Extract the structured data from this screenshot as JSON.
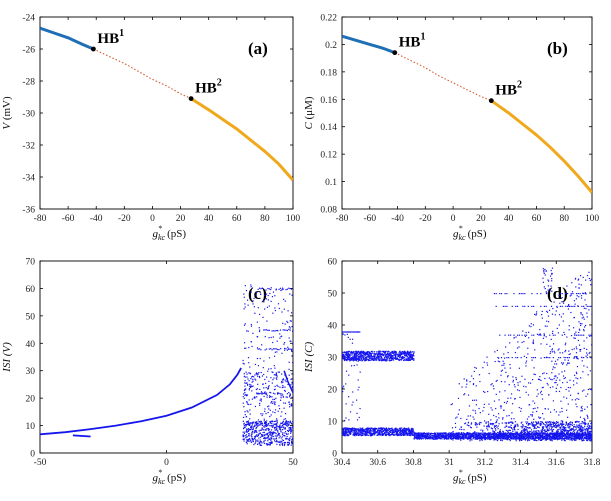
{
  "colors": {
    "stable_low": "#1f6fb5",
    "stable_high": "#f0a81c",
    "unstable": "#d9572a",
    "hb_point": "#000000",
    "isi": "#1515ee"
  },
  "chart_data": [
    {
      "id": "a",
      "type": "line",
      "panel_label": "(a)",
      "xlabel_base": "g",
      "xlabel_sub": "kc",
      "xlabel_sup": "*",
      "xlabel_unit": "(pS)",
      "ylabel_var": "V",
      "ylabel_unit": "(mV)",
      "xlim": [
        -80,
        100
      ],
      "ylim": [
        -36,
        -24
      ],
      "xticks": [
        "-80",
        "-60",
        "-40",
        "-20",
        "0",
        "20",
        "40",
        "60",
        "80",
        "100"
      ],
      "yticks": [
        "-24",
        "-26",
        "-28",
        "-30",
        "-32",
        "-34",
        "-36"
      ],
      "series": [
        {
          "name": "stable-lower",
          "style": "stable_low",
          "x": [
            -80,
            -70,
            -60,
            -50,
            -42
          ],
          "y": [
            -24.7,
            -25.0,
            -25.3,
            -25.7,
            -26.0
          ]
        },
        {
          "name": "unstable",
          "style": "unstable",
          "x": [
            -42,
            -30,
            -20,
            -10,
            0,
            10,
            20,
            27.5
          ],
          "y": [
            -26.0,
            -26.5,
            -26.9,
            -27.4,
            -27.9,
            -28.3,
            -28.8,
            -29.1
          ]
        },
        {
          "name": "stable-upper",
          "style": "stable_high",
          "x": [
            27.5,
            40,
            50,
            60,
            70,
            80,
            90,
            100
          ],
          "y": [
            -29.1,
            -29.8,
            -30.4,
            -31.0,
            -31.7,
            -32.4,
            -33.2,
            -34.2
          ]
        }
      ],
      "hb_points": [
        {
          "label": "HB",
          "sup": "1",
          "x": -42,
          "y": -26.0
        },
        {
          "label": "HB",
          "sup": "2",
          "x": 27.5,
          "y": -29.1
        }
      ]
    },
    {
      "id": "b",
      "type": "line",
      "panel_label": "(b)",
      "xlabel_base": "g",
      "xlabel_sub": "kc",
      "xlabel_sup": "*",
      "xlabel_unit": "(pS)",
      "ylabel_var": "C",
      "ylabel_unit": "(μM)",
      "xlim": [
        -80,
        100
      ],
      "ylim": [
        0.08,
        0.22
      ],
      "xticks": [
        "-80",
        "-60",
        "-40",
        "-20",
        "0",
        "20",
        "40",
        "60",
        "80",
        "100"
      ],
      "yticks": [
        "0.22",
        "0.2",
        "0.18",
        "0.16",
        "0.14",
        "0.12",
        "0.1",
        "0.08"
      ],
      "series": [
        {
          "name": "stable-lower",
          "style": "stable_low",
          "x": [
            -80,
            -70,
            -60,
            -50,
            -42
          ],
          "y": [
            0.206,
            0.203,
            0.2,
            0.197,
            0.194
          ]
        },
        {
          "name": "unstable",
          "style": "unstable",
          "x": [
            -42,
            -30,
            -20,
            -10,
            0,
            10,
            20,
            27.5
          ],
          "y": [
            0.194,
            0.188,
            0.183,
            0.177,
            0.172,
            0.167,
            0.162,
            0.159
          ]
        },
        {
          "name": "stable-upper",
          "style": "stable_high",
          "x": [
            27.5,
            40,
            50,
            60,
            70,
            80,
            90,
            100
          ],
          "y": [
            0.159,
            0.15,
            0.142,
            0.134,
            0.125,
            0.115,
            0.104,
            0.092
          ]
        }
      ],
      "hb_points": [
        {
          "label": "HB",
          "sup": "1",
          "x": -42,
          "y": 0.194
        },
        {
          "label": "HB",
          "sup": "2",
          "x": 27.5,
          "y": 0.159
        }
      ]
    },
    {
      "id": "c",
      "type": "scatter",
      "panel_label": "(c)",
      "xlabel_base": "g",
      "xlabel_sub": "kc",
      "xlabel_sup": "*",
      "xlabel_unit": "(pS)",
      "ylabel_var": "ISI (V)",
      "xlim": [
        -50,
        50
      ],
      "ylim": [
        0,
        70
      ],
      "xticks": [
        "-50",
        "0",
        "50"
      ],
      "yticks": [
        "70",
        "60",
        "50",
        "40",
        "30",
        "20",
        "10",
        "0"
      ],
      "series": [
        {
          "name": "ISI curve",
          "style": "isi",
          "x": [
            -50,
            -40,
            -30,
            -20,
            -10,
            0,
            10,
            20,
            25,
            28,
            29.5
          ],
          "y": [
            6.8,
            7.6,
            8.7,
            10.0,
            11.6,
            13.6,
            16.6,
            21.2,
            25.0,
            28.5,
            31.0
          ]
        },
        {
          "name": "ISI short branch",
          "style": "isi",
          "x": [
            -37,
            -30
          ],
          "y": [
            6.4,
            6.0
          ]
        }
      ],
      "scatter_region": {
        "x_range": [
          30,
          50
        ],
        "y_levels": [
          60,
          45,
          38,
          22
        ],
        "y_range": [
          3,
          62
        ]
      }
    },
    {
      "id": "d",
      "type": "scatter",
      "panel_label": "(d)",
      "xlabel_base": "g",
      "xlabel_sub": "kc",
      "xlabel_sup": "*",
      "xlabel_unit": "(pS)",
      "ylabel_var": "ISI (C)",
      "xlim": [
        30.4,
        31.8
      ],
      "ylim": [
        0,
        60
      ],
      "xticks": [
        "30.4",
        "30.6",
        "30.8",
        "31",
        "31.2",
        "31.4",
        "31.6",
        "31.8"
      ],
      "yticks": [
        "60",
        "50",
        "40",
        "30",
        "20",
        "10",
        "0"
      ],
      "bands": [
        {
          "x_range": [
            30.4,
            30.8
          ],
          "y": 30.5,
          "spread": 1.5
        },
        {
          "x_range": [
            30.4,
            30.8
          ],
          "y": 6.8,
          "spread": 1.2
        },
        {
          "x_range": [
            30.8,
            31.8
          ],
          "y": 5.5,
          "spread": 1.0
        }
      ],
      "scatter_region": {
        "x_range": [
          31.0,
          31.8
        ],
        "y_range": [
          4,
          58
        ]
      }
    }
  ]
}
